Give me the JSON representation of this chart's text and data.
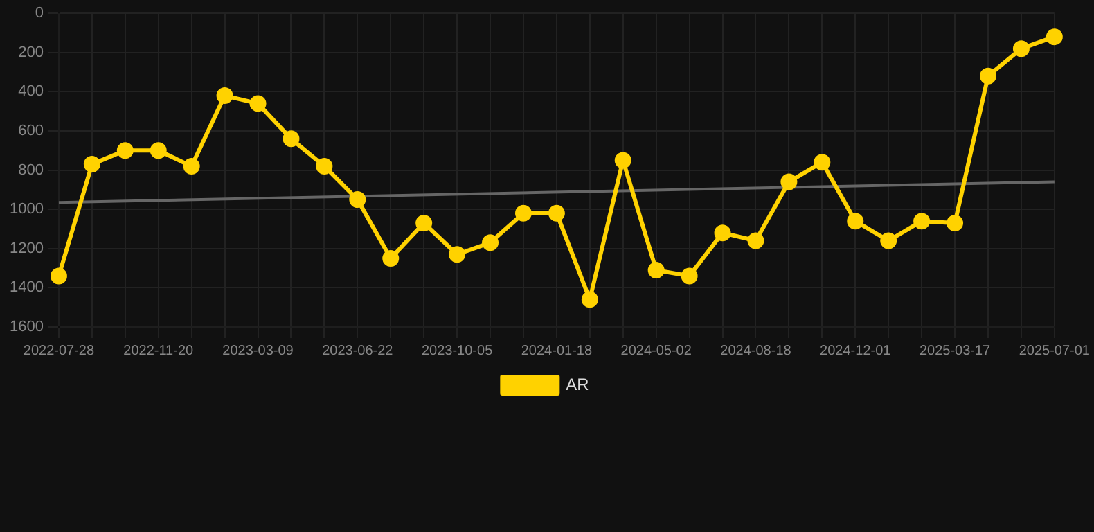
{
  "chart_data": {
    "type": "line",
    "categories": [
      "2022-07-28",
      null,
      null,
      "2022-11-20",
      null,
      null,
      "2023-03-09",
      null,
      null,
      "2023-06-22",
      null,
      null,
      "2023-10-05",
      null,
      null,
      "2024-01-18",
      null,
      null,
      "2024-05-02",
      null,
      null,
      "2024-08-18",
      null,
      null,
      "2024-12-01",
      null,
      null,
      "2025-03-17",
      null,
      null,
      "2025-07-01"
    ],
    "series": [
      {
        "name": "AR",
        "color": "#ffd200",
        "marker": "circle",
        "values": [
          1340,
          770,
          700,
          700,
          780,
          420,
          460,
          640,
          780,
          950,
          1250,
          1070,
          1230,
          1170,
          1020,
          1020,
          1460,
          750,
          1310,
          1340,
          1120,
          1160,
          860,
          760,
          1060,
          1160,
          1060,
          1070,
          320,
          180,
          120
        ]
      },
      {
        "type": "line",
        "color": "#666666",
        "marker": "none",
        "values": [
          965,
          null,
          null,
          null,
          null,
          null,
          null,
          null,
          null,
          null,
          null,
          null,
          null,
          null,
          null,
          null,
          null,
          null,
          null,
          null,
          null,
          null,
          null,
          null,
          null,
          null,
          null,
          null,
          null,
          null,
          860
        ]
      }
    ],
    "ylim": [
      1600,
      0
    ],
    "yticks": [
      0,
      200,
      400,
      600,
      800,
      1000,
      1200,
      1400,
      1600
    ],
    "grid": true,
    "legend": "bottom"
  }
}
